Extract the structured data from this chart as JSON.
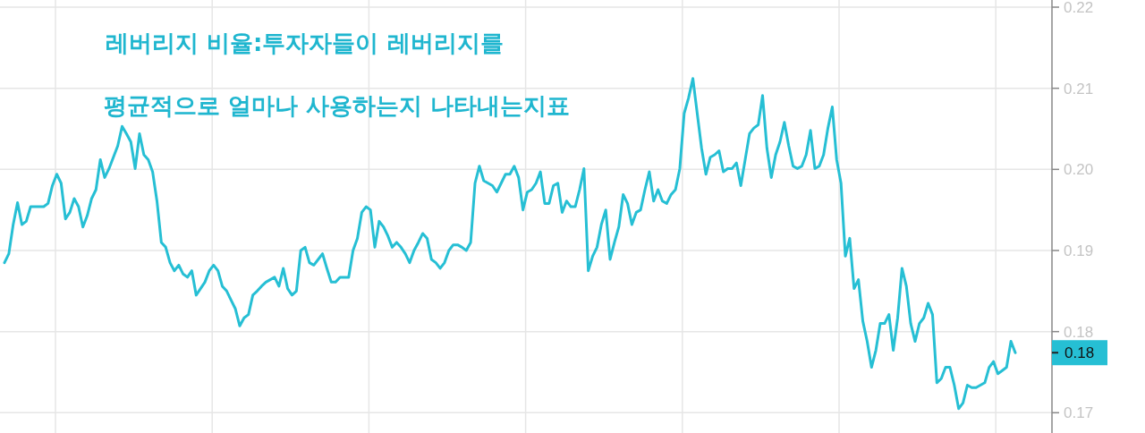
{
  "chart_data": {
    "type": "line",
    "title": "레버리지 비율:투자자들이 레버리지를",
    "subtitle": "평균적으로 얼마나 사용하는지 나타내는지표",
    "categories": [
      null,
      null,
      null,
      null,
      null,
      null,
      null,
      null,
      null,
      null,
      null,
      null,
      null,
      null,
      null,
      null,
      null,
      null,
      null,
      null,
      null,
      null,
      null,
      null,
      null,
      null,
      null,
      null,
      null,
      null,
      null,
      null,
      null,
      null,
      null,
      null,
      null,
      null,
      null,
      null,
      null,
      null,
      null,
      null,
      null,
      null,
      null,
      null,
      null,
      null,
      null,
      null,
      null,
      null,
      null,
      null,
      null,
      null,
      null,
      null,
      null,
      null,
      null,
      null,
      null,
      null,
      null,
      null,
      null,
      null,
      null,
      null,
      null,
      null,
      null,
      null,
      null,
      null,
      null,
      null,
      null,
      null,
      null,
      null,
      null,
      null,
      null,
      null,
      null,
      null,
      null,
      null,
      null,
      null,
      null,
      null,
      null,
      null,
      null,
      null,
      null,
      null,
      null,
      null,
      null,
      null,
      null,
      null,
      null,
      null,
      null,
      null,
      null,
      null,
      null,
      null,
      null,
      null,
      null,
      null,
      null,
      null,
      null,
      null,
      null,
      null,
      null,
      null,
      null,
      null,
      null,
      null,
      null,
      null,
      null,
      null,
      null,
      null,
      null,
      null,
      null,
      null,
      null,
      null,
      null,
      null,
      null,
      null,
      null,
      null,
      null,
      null,
      null,
      null,
      null,
      null,
      null,
      null,
      null,
      null,
      null,
      null,
      null,
      null,
      null,
      null,
      null,
      null,
      null,
      null,
      null,
      null,
      null,
      null,
      null,
      null,
      null,
      null,
      null,
      null,
      null,
      null,
      null,
      null,
      null,
      null,
      null,
      null,
      null,
      null,
      null,
      null,
      null,
      null,
      null,
      null,
      null,
      null,
      null,
      null,
      null,
      null,
      null,
      null,
      null,
      null,
      null,
      null,
      null,
      null,
      null,
      null,
      null,
      null,
      null,
      null,
      null,
      null,
      null,
      null,
      null,
      null,
      null,
      null,
      null,
      null,
      null,
      null,
      null,
      null,
      null,
      null,
      null
    ],
    "series": [
      {
        "color": "#26bfd4",
        "values": [
          0.1885,
          0.1896,
          0.1932,
          0.1959,
          0.1932,
          0.1936,
          0.1954,
          0.1954,
          0.1954,
          0.1954,
          0.1958,
          0.198,
          0.1994,
          0.1983,
          0.1939,
          0.1947,
          0.1964,
          0.1954,
          0.1929,
          0.1943,
          0.1964,
          0.1975,
          0.2012,
          0.199,
          0.2001,
          0.2015,
          0.2029,
          0.2053,
          0.2044,
          0.2034,
          0.2001,
          0.2044,
          0.2018,
          0.2012,
          0.1997,
          0.1961,
          0.191,
          0.1904,
          0.1885,
          0.1875,
          0.1882,
          0.1871,
          0.1867,
          0.1875,
          0.1845,
          0.1853,
          0.1861,
          0.1875,
          0.1882,
          0.1875,
          0.1856,
          0.185,
          0.1839,
          0.1828,
          0.1807,
          0.1817,
          0.1821,
          0.1845,
          0.185,
          0.1856,
          0.1861,
          0.1864,
          0.1867,
          0.1856,
          0.1878,
          0.1853,
          0.1845,
          0.185,
          0.19,
          0.1904,
          0.1885,
          0.1882,
          0.1889,
          0.1896,
          0.1878,
          0.1861,
          0.1861,
          0.1867,
          0.1867,
          0.1867,
          0.19,
          0.1915,
          0.1947,
          0.1954,
          0.195,
          0.1904,
          0.1936,
          0.1929,
          0.1918,
          0.1904,
          0.191,
          0.1904,
          0.1896,
          0.1885,
          0.19,
          0.191,
          0.1921,
          0.1915,
          0.1889,
          0.1885,
          0.1878,
          0.1885,
          0.19,
          0.1907,
          0.1907,
          0.1904,
          0.19,
          0.191,
          0.1983,
          0.2004,
          0.1986,
          0.1983,
          0.198,
          0.1972,
          0.1983,
          0.1994,
          0.1994,
          0.2004,
          0.199,
          0.195,
          0.1972,
          0.1975,
          0.1983,
          0.1997,
          0.1958,
          0.1958,
          0.198,
          0.1983,
          0.1947,
          0.1961,
          0.1954,
          0.1954,
          0.1975,
          0.2001,
          0.1875,
          0.1893,
          0.1904,
          0.1932,
          0.195,
          0.1889,
          0.191,
          0.1929,
          0.1969,
          0.1958,
          0.1932,
          0.1947,
          0.195,
          0.1975,
          0.1997,
          0.1961,
          0.1975,
          0.1961,
          0.1958,
          0.1969,
          0.1975,
          0.2001,
          0.2069,
          0.2088,
          0.2112,
          0.2069,
          0.2026,
          0.1994,
          0.2015,
          0.2018,
          0.2023,
          0.1997,
          0.2001,
          0.2001,
          0.2008,
          0.198,
          0.2012,
          0.2044,
          0.2051,
          0.2055,
          0.2091,
          0.2026,
          0.199,
          0.2018,
          0.2034,
          0.2058,
          0.2029,
          0.2004,
          0.2001,
          0.2004,
          0.2018,
          0.2048,
          0.2001,
          0.2004,
          0.2018,
          0.2051,
          0.2077,
          0.2012,
          0.1983,
          0.1893,
          0.1915,
          0.1853,
          0.1864,
          0.1813,
          0.1788,
          0.1756,
          0.1777,
          0.181,
          0.181,
          0.1821,
          0.1777,
          0.1817,
          0.1878,
          0.1856,
          0.181,
          0.1788,
          0.181,
          0.1817,
          0.1835,
          0.1821,
          0.1737,
          0.1742,
          0.1756,
          0.1756,
          0.1734,
          0.1705,
          0.1712,
          0.1734,
          0.1731,
          0.1731,
          0.1734,
          0.1737,
          0.1756,
          0.1763,
          0.1748,
          0.1752,
          0.1756,
          0.1788,
          0.1774
        ]
      }
    ],
    "ylim": [
      0.1675,
      0.22
    ],
    "yticks": [
      0.17,
      0.18,
      0.19,
      {
        "value": 0.2,
        "label": "0.20"
      },
      0.21,
      0.22
    ],
    "grid": true,
    "annotations": [
      "0.18"
    ]
  }
}
